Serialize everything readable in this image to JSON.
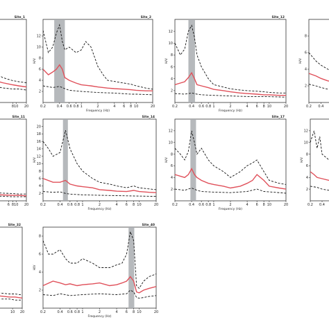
{
  "chart_data": [
    {
      "type": "line",
      "title": "Site_1",
      "xlabel": "",
      "ylabel": "",
      "xscale": "log",
      "xlim": [
        0.2,
        20
      ],
      "ylim": [
        0,
        8
      ],
      "xticks": [
        "8",
        "10",
        "20"
      ],
      "yticks": [],
      "band": [],
      "series": [
        {
          "style": "mean",
          "x": [
            0.2,
            1,
            2,
            4,
            8,
            12,
            20
          ],
          "y": [
            3.0,
            2.6,
            2.2,
            1.9,
            1.7,
            1.6,
            1.5
          ]
        },
        {
          "style": "upper",
          "x": [
            0.2,
            1,
            2,
            4,
            8,
            12,
            20
          ],
          "y": [
            4.6,
            3.8,
            3.0,
            2.4,
            2.1,
            2.0,
            1.9
          ]
        },
        {
          "style": "lower",
          "x": [
            0.2,
            1,
            2,
            4,
            8,
            12,
            20
          ],
          "y": [
            1.9,
            1.7,
            1.6,
            1.4,
            1.3,
            1.3,
            1.2
          ]
        }
      ]
    },
    {
      "type": "line",
      "title": "Site_2",
      "xlabel": "Frequency (Hz)",
      "ylabel": "H/V",
      "xscale": "log",
      "xlim": [
        0.2,
        20
      ],
      "ylim": [
        0,
        15
      ],
      "xticks": [
        "0.2",
        "0.4",
        "0.6",
        "0.8",
        "1",
        "2",
        "4",
        "6",
        "8",
        "10",
        "20"
      ],
      "yticks": [
        "2",
        "4",
        "6",
        "8",
        "10",
        "12"
      ],
      "band": [
        0.32,
        0.5
      ],
      "series": [
        {
          "style": "mean",
          "x": [
            0.2,
            0.25,
            0.3,
            0.35,
            0.4,
            0.45,
            0.5,
            0.6,
            0.8,
            1,
            1.5,
            2,
            3,
            4,
            6,
            8,
            10,
            15,
            20
          ],
          "y": [
            6.0,
            5.0,
            5.5,
            6.0,
            6.8,
            6.0,
            4.5,
            4.0,
            3.5,
            3.2,
            3.0,
            2.8,
            2.6,
            2.5,
            2.4,
            2.3,
            2.2,
            2.1,
            2.1
          ]
        },
        {
          "style": "upper",
          "x": [
            0.2,
            0.25,
            0.3,
            0.35,
            0.4,
            0.45,
            0.5,
            0.6,
            0.8,
            1,
            1.2,
            1.5,
            2,
            2.5,
            3,
            4,
            6,
            8,
            10,
            15,
            20
          ],
          "y": [
            13.0,
            9.0,
            10.0,
            12.5,
            14.0,
            11.0,
            9.5,
            10.0,
            9.0,
            9.5,
            11.0,
            10.0,
            6.5,
            5.0,
            4.0,
            3.8,
            3.5,
            3.3,
            3.0,
            2.6,
            2.4
          ]
        },
        {
          "style": "lower",
          "x": [
            0.2,
            0.3,
            0.4,
            0.5,
            0.6,
            1,
            2,
            4,
            8,
            10,
            20
          ],
          "y": [
            3.0,
            2.7,
            2.9,
            2.5,
            2.2,
            2.0,
            1.8,
            1.7,
            1.5,
            1.5,
            1.4
          ]
        }
      ]
    },
    {
      "type": "line",
      "title": "Site_12",
      "xlabel": "Frequency (Hz)",
      "ylabel": "H/V",
      "xscale": "log",
      "xlim": [
        0.2,
        20
      ],
      "ylim": [
        0,
        14
      ],
      "xticks": [
        "0.2",
        "0.4",
        "0.6",
        "0.8",
        "1",
        "2",
        "4",
        "6",
        "8",
        "10",
        "20"
      ],
      "yticks": [
        "2",
        "4",
        "6",
        "8",
        "10",
        "12"
      ],
      "band": [
        0.35,
        0.46
      ],
      "series": [
        {
          "style": "mean",
          "x": [
            0.2,
            0.3,
            0.35,
            0.4,
            0.45,
            0.5,
            0.6,
            0.8,
            1,
            1.5,
            2,
            3,
            4,
            6,
            8,
            10,
            15,
            20
          ],
          "y": [
            3.0,
            3.5,
            4.2,
            5.0,
            4.0,
            3.0,
            2.8,
            2.5,
            2.2,
            2.0,
            1.8,
            1.6,
            1.5,
            1.4,
            1.3,
            1.3,
            1.2,
            1.2
          ]
        },
        {
          "style": "upper",
          "x": [
            0.2,
            0.25,
            0.3,
            0.35,
            0.4,
            0.45,
            0.5,
            0.6,
            0.8,
            1,
            1.5,
            2,
            3,
            4,
            6,
            8,
            10,
            15,
            20
          ],
          "y": [
            10.0,
            8.0,
            9.0,
            12.0,
            13.0,
            11.0,
            8.0,
            6.0,
            4.0,
            3.0,
            2.6,
            2.3,
            2.1,
            2.0,
            1.9,
            1.8,
            1.7,
            1.6,
            1.6
          ]
        },
        {
          "style": "lower",
          "x": [
            0.2,
            0.3,
            0.4,
            0.5,
            0.6,
            1,
            2,
            4,
            8,
            20
          ],
          "y": [
            1.5,
            1.4,
            1.6,
            1.4,
            1.3,
            1.2,
            1.1,
            1.0,
            1.0,
            0.9
          ]
        }
      ]
    },
    {
      "type": "line",
      "title": "",
      "xlabel": "",
      "ylabel": "H/V",
      "xscale": "log",
      "xlim": [
        0.2,
        20
      ],
      "ylim": [
        0,
        10
      ],
      "xticks": [
        "0.2",
        "0.4"
      ],
      "yticks": [
        "2",
        "4",
        "6",
        "8"
      ],
      "band": [],
      "series": [
        {
          "style": "mean",
          "x": [
            0.2,
            0.3,
            0.4,
            0.6,
            1
          ],
          "y": [
            3.5,
            3.2,
            2.9,
            2.6,
            2.4
          ]
        },
        {
          "style": "upper",
          "x": [
            0.2,
            0.3,
            0.4,
            0.6,
            1
          ],
          "y": [
            6.0,
            5.0,
            4.5,
            4.0,
            3.5
          ]
        },
        {
          "style": "lower",
          "x": [
            0.2,
            0.3,
            0.4,
            0.6,
            1
          ],
          "y": [
            2.2,
            2.0,
            1.8,
            1.6,
            1.5
          ]
        }
      ]
    },
    {
      "type": "line",
      "title": "Site_11",
      "xlabel": "",
      "ylabel": "",
      "xscale": "log",
      "xlim": [
        0.2,
        20
      ],
      "ylim": [
        0,
        18
      ],
      "xticks": [
        "6",
        "8",
        "10",
        "20"
      ],
      "yticks": [],
      "band": [],
      "series": [
        {
          "style": "mean",
          "x": [
            1,
            4,
            8,
            12,
            20
          ],
          "y": [
            1.5,
            1.3,
            1.2,
            1.2,
            1.1
          ]
        },
        {
          "style": "upper",
          "x": [
            1,
            4,
            8,
            12,
            20
          ],
          "y": [
            1.9,
            1.7,
            1.6,
            1.5,
            1.5
          ]
        },
        {
          "style": "lower",
          "x": [
            1,
            4,
            8,
            12,
            20
          ],
          "y": [
            1.1,
            1.0,
            0.9,
            0.9,
            0.9
          ]
        }
      ]
    },
    {
      "type": "line",
      "title": "Site_14",
      "xlabel": "Frequency (Hz)",
      "ylabel": "H/V",
      "xscale": "log",
      "xlim": [
        0.2,
        20
      ],
      "ylim": [
        0,
        22
      ],
      "xticks": [
        "0.2",
        "0.4",
        "0.6",
        "0.8",
        "1",
        "2",
        "4",
        "6",
        "8",
        "10",
        "20"
      ],
      "yticks": [
        "2",
        "4",
        "6",
        "8",
        "10",
        "12",
        "14",
        "16",
        "18",
        "20"
      ],
      "band": [
        0.45,
        0.55
      ],
      "series": [
        {
          "style": "mean",
          "x": [
            0.2,
            0.3,
            0.4,
            0.5,
            0.6,
            0.8,
            1,
            1.5,
            2,
            3,
            4,
            6,
            8,
            10,
            15,
            20
          ],
          "y": [
            6.0,
            5.0,
            5.0,
            5.5,
            4.5,
            4.0,
            3.8,
            3.5,
            3.0,
            2.8,
            2.6,
            2.5,
            2.8,
            2.5,
            2.3,
            2.2
          ]
        },
        {
          "style": "upper",
          "x": [
            0.2,
            0.25,
            0.3,
            0.4,
            0.5,
            0.6,
            0.8,
            1,
            1.5,
            2,
            3,
            4,
            6,
            8,
            10,
            15,
            20
          ],
          "y": [
            16.0,
            14.0,
            12.0,
            13.0,
            19.0,
            14.0,
            10.0,
            8.0,
            6.0,
            5.0,
            4.5,
            4.0,
            3.5,
            4.0,
            3.5,
            3.2,
            3.0
          ]
        },
        {
          "style": "lower",
          "x": [
            0.2,
            0.3,
            0.4,
            0.5,
            0.6,
            1,
            2,
            4,
            8,
            20
          ],
          "y": [
            2.5,
            2.3,
            2.4,
            2.0,
            1.8,
            1.6,
            1.5,
            1.4,
            1.3,
            1.2
          ]
        }
      ]
    },
    {
      "type": "line",
      "title": "Site_17",
      "xlabel": "Frequency (Hz)",
      "ylabel": "H/V",
      "xscale": "log",
      "xlim": [
        0.2,
        20
      ],
      "ylim": [
        0,
        14
      ],
      "xticks": [
        "0.2",
        "0.4",
        "0.6",
        "0.8",
        "1",
        "2",
        "4",
        "6",
        "8",
        "10",
        "20"
      ],
      "yticks": [
        "2",
        "4",
        "6",
        "8",
        "10",
        "12"
      ],
      "band": [
        0.38,
        0.48
      ],
      "series": [
        {
          "style": "mean",
          "x": [
            0.2,
            0.3,
            0.35,
            0.4,
            0.45,
            0.5,
            0.6,
            0.8,
            1,
            1.5,
            2,
            3,
            4,
            5,
            6,
            8,
            10,
            15,
            20
          ],
          "y": [
            4.5,
            4.0,
            4.5,
            5.5,
            4.5,
            4.0,
            3.5,
            3.0,
            2.8,
            2.5,
            2.2,
            2.5,
            3.0,
            3.5,
            4.5,
            3.5,
            2.5,
            2.2,
            2.0
          ]
        },
        {
          "style": "upper",
          "x": [
            0.2,
            0.25,
            0.3,
            0.35,
            0.4,
            0.45,
            0.5,
            0.6,
            0.8,
            1,
            1.5,
            2,
            3,
            4,
            5,
            6,
            8,
            10,
            15,
            20
          ],
          "y": [
            9.0,
            8.0,
            7.0,
            8.5,
            12.0,
            10.0,
            8.0,
            9.0,
            7.0,
            6.0,
            5.0,
            4.0,
            5.0,
            6.0,
            6.5,
            7.0,
            5.0,
            3.5,
            3.0,
            2.8
          ]
        },
        {
          "style": "lower",
          "x": [
            0.2,
            0.3,
            0.4,
            0.5,
            0.6,
            1,
            2,
            4,
            6,
            8,
            20
          ],
          "y": [
            2.0,
            1.8,
            2.2,
            1.8,
            1.6,
            1.5,
            1.4,
            1.6,
            2.0,
            1.6,
            1.3
          ]
        }
      ]
    },
    {
      "type": "line",
      "title": "",
      "xlabel": "",
      "ylabel": "H/V",
      "xscale": "log",
      "xlim": [
        0.2,
        20
      ],
      "ylim": [
        0,
        14
      ],
      "xticks": [
        "0.2",
        "0.4"
      ],
      "yticks": [
        "2",
        "4",
        "6",
        "8",
        "10",
        "12"
      ],
      "band": [],
      "series": [
        {
          "style": "mean",
          "x": [
            0.2,
            0.25,
            0.3,
            0.4,
            0.6,
            1
          ],
          "y": [
            5.0,
            4.5,
            4.0,
            3.8,
            3.5,
            3.2
          ]
        },
        {
          "style": "upper",
          "x": [
            0.2,
            0.25,
            0.3,
            0.35,
            0.4,
            0.6,
            1
          ],
          "y": [
            10.0,
            12.0,
            9.0,
            11.0,
            8.0,
            7.0,
            6.0
          ]
        },
        {
          "style": "lower",
          "x": [
            0.2,
            0.3,
            0.4,
            0.6,
            1
          ],
          "y": [
            2.5,
            2.3,
            2.0,
            1.8,
            1.6
          ]
        }
      ]
    },
    {
      "type": "line",
      "title": "Site_32",
      "xlabel": "",
      "ylabel": "",
      "xscale": "log",
      "xlim": [
        0.2,
        20
      ],
      "ylim": [
        0,
        8
      ],
      "xticks": [
        "10",
        "20"
      ],
      "yticks": [],
      "band": [],
      "series": [
        {
          "style": "mean",
          "x": [
            1,
            4,
            8,
            12,
            20
          ],
          "y": [
            1.3,
            1.2,
            1.1,
            1.1,
            1.0
          ]
        },
        {
          "style": "upper",
          "x": [
            1,
            4,
            8,
            12,
            20
          ],
          "y": [
            1.6,
            1.5,
            1.4,
            1.4,
            1.3
          ]
        },
        {
          "style": "lower",
          "x": [
            1,
            4,
            8,
            12,
            20
          ],
          "y": [
            1.0,
            0.9,
            0.9,
            0.8,
            0.8
          ]
        }
      ]
    },
    {
      "type": "line",
      "title": "Site_40",
      "xlabel": "Frequency (Hz)",
      "ylabel": "H/V",
      "xscale": "log",
      "xlim": [
        0.2,
        20
      ],
      "ylim": [
        0,
        9
      ],
      "xticks": [
        "0.2",
        "0.4",
        "0.6",
        "0.8",
        "1",
        "2",
        "4",
        "6",
        "8",
        "10",
        "20"
      ],
      "yticks": [
        "2",
        "4",
        "6",
        "8"
      ],
      "band": [
        6.5,
        8.2
      ],
      "series": [
        {
          "style": "mean",
          "x": [
            0.2,
            0.3,
            0.4,
            0.5,
            0.6,
            0.8,
            1,
            1.5,
            2,
            3,
            4,
            5,
            6,
            7,
            8,
            9,
            10,
            12,
            15,
            20
          ],
          "y": [
            2.5,
            3.0,
            2.8,
            2.6,
            2.7,
            2.5,
            2.6,
            2.7,
            2.8,
            2.5,
            2.6,
            2.8,
            3.0,
            3.5,
            3.0,
            1.8,
            1.7,
            2.0,
            2.2,
            2.4
          ]
        },
        {
          "style": "upper",
          "x": [
            0.2,
            0.25,
            0.3,
            0.4,
            0.5,
            0.6,
            0.8,
            1,
            1.5,
            2,
            3,
            4,
            5,
            6,
            7,
            8,
            9,
            10,
            12,
            15,
            20
          ],
          "y": [
            7.5,
            6.0,
            6.0,
            6.5,
            5.5,
            5.0,
            5.0,
            5.5,
            5.0,
            4.5,
            4.5,
            4.8,
            5.0,
            6.0,
            8.5,
            7.5,
            2.5,
            2.2,
            3.0,
            3.5,
            3.8
          ]
        },
        {
          "style": "lower",
          "x": [
            0.2,
            0.3,
            0.4,
            0.6,
            1,
            2,
            4,
            6,
            7,
            8,
            9,
            10,
            15,
            20
          ],
          "y": [
            1.5,
            1.4,
            1.6,
            1.4,
            1.5,
            1.6,
            1.5,
            1.6,
            2.0,
            1.8,
            1.2,
            1.1,
            1.3,
            1.4
          ]
        }
      ]
    }
  ]
}
